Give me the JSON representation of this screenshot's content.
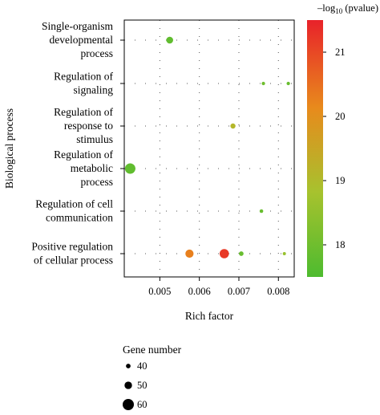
{
  "chart_data": {
    "type": "scatter",
    "xlabel": "Rich factor",
    "ylabel": "Biological process",
    "xlim": [
      0.0041,
      0.0084
    ],
    "xticks": [
      0.005,
      0.006,
      0.007,
      0.008
    ],
    "xtick_labels": [
      "0.005",
      "0.006",
      "0.007",
      "0.008"
    ],
    "categories": [
      [
        "Single-organism",
        "developmental",
        "process"
      ],
      [
        "Regulation of",
        "signaling"
      ],
      [
        "Regulation of",
        "response to",
        "stimulus"
      ],
      [
        "Regulation of",
        "metabolic",
        "process"
      ],
      [
        "Regulation of cell",
        "communication"
      ],
      [
        "Positive regulation",
        "of cellular process"
      ]
    ],
    "points": [
      {
        "category": 0,
        "x": 0.00525,
        "gene_number": 48,
        "neg_log10_p": 17.8
      },
      {
        "category": 1,
        "x": 0.00762,
        "gene_number": 35,
        "neg_log10_p": 18.0
      },
      {
        "category": 1,
        "x": 0.00825,
        "gene_number": 35,
        "neg_log10_p": 17.9
      },
      {
        "category": 2,
        "x": 0.00685,
        "gene_number": 42,
        "neg_log10_p": 19.1
      },
      {
        "category": 3,
        "x": 0.00425,
        "gene_number": 58,
        "neg_log10_p": 17.8
      },
      {
        "category": 4,
        "x": 0.00757,
        "gene_number": 36,
        "neg_log10_p": 17.9
      },
      {
        "category": 5,
        "x": 0.00575,
        "gene_number": 52,
        "neg_log10_p": 20.3
      },
      {
        "category": 5,
        "x": 0.00663,
        "gene_number": 55,
        "neg_log10_p": 21.2
      },
      {
        "category": 5,
        "x": 0.00706,
        "gene_number": 40,
        "neg_log10_p": 17.9
      },
      {
        "category": 5,
        "x": 0.00815,
        "gene_number": 30,
        "neg_log10_p": 18.6
      }
    ],
    "size_legend": {
      "title": "Gene number",
      "values": [
        40,
        50,
        60
      ],
      "labels": [
        "40",
        "50",
        "60"
      ]
    },
    "color_scale": {
      "title_prefix": "–log",
      "title_sub": "10",
      "title_suffix": " (pvalue)",
      "min": 17.5,
      "max": 21.5,
      "ticks": [
        18,
        19,
        20,
        21
      ],
      "tick_labels": [
        "18",
        "19",
        "20",
        "21"
      ],
      "colors": [
        "#4dbb2f",
        "#a7c22e",
        "#e88a1c",
        "#e8222a"
      ]
    },
    "grid": "dotted"
  }
}
